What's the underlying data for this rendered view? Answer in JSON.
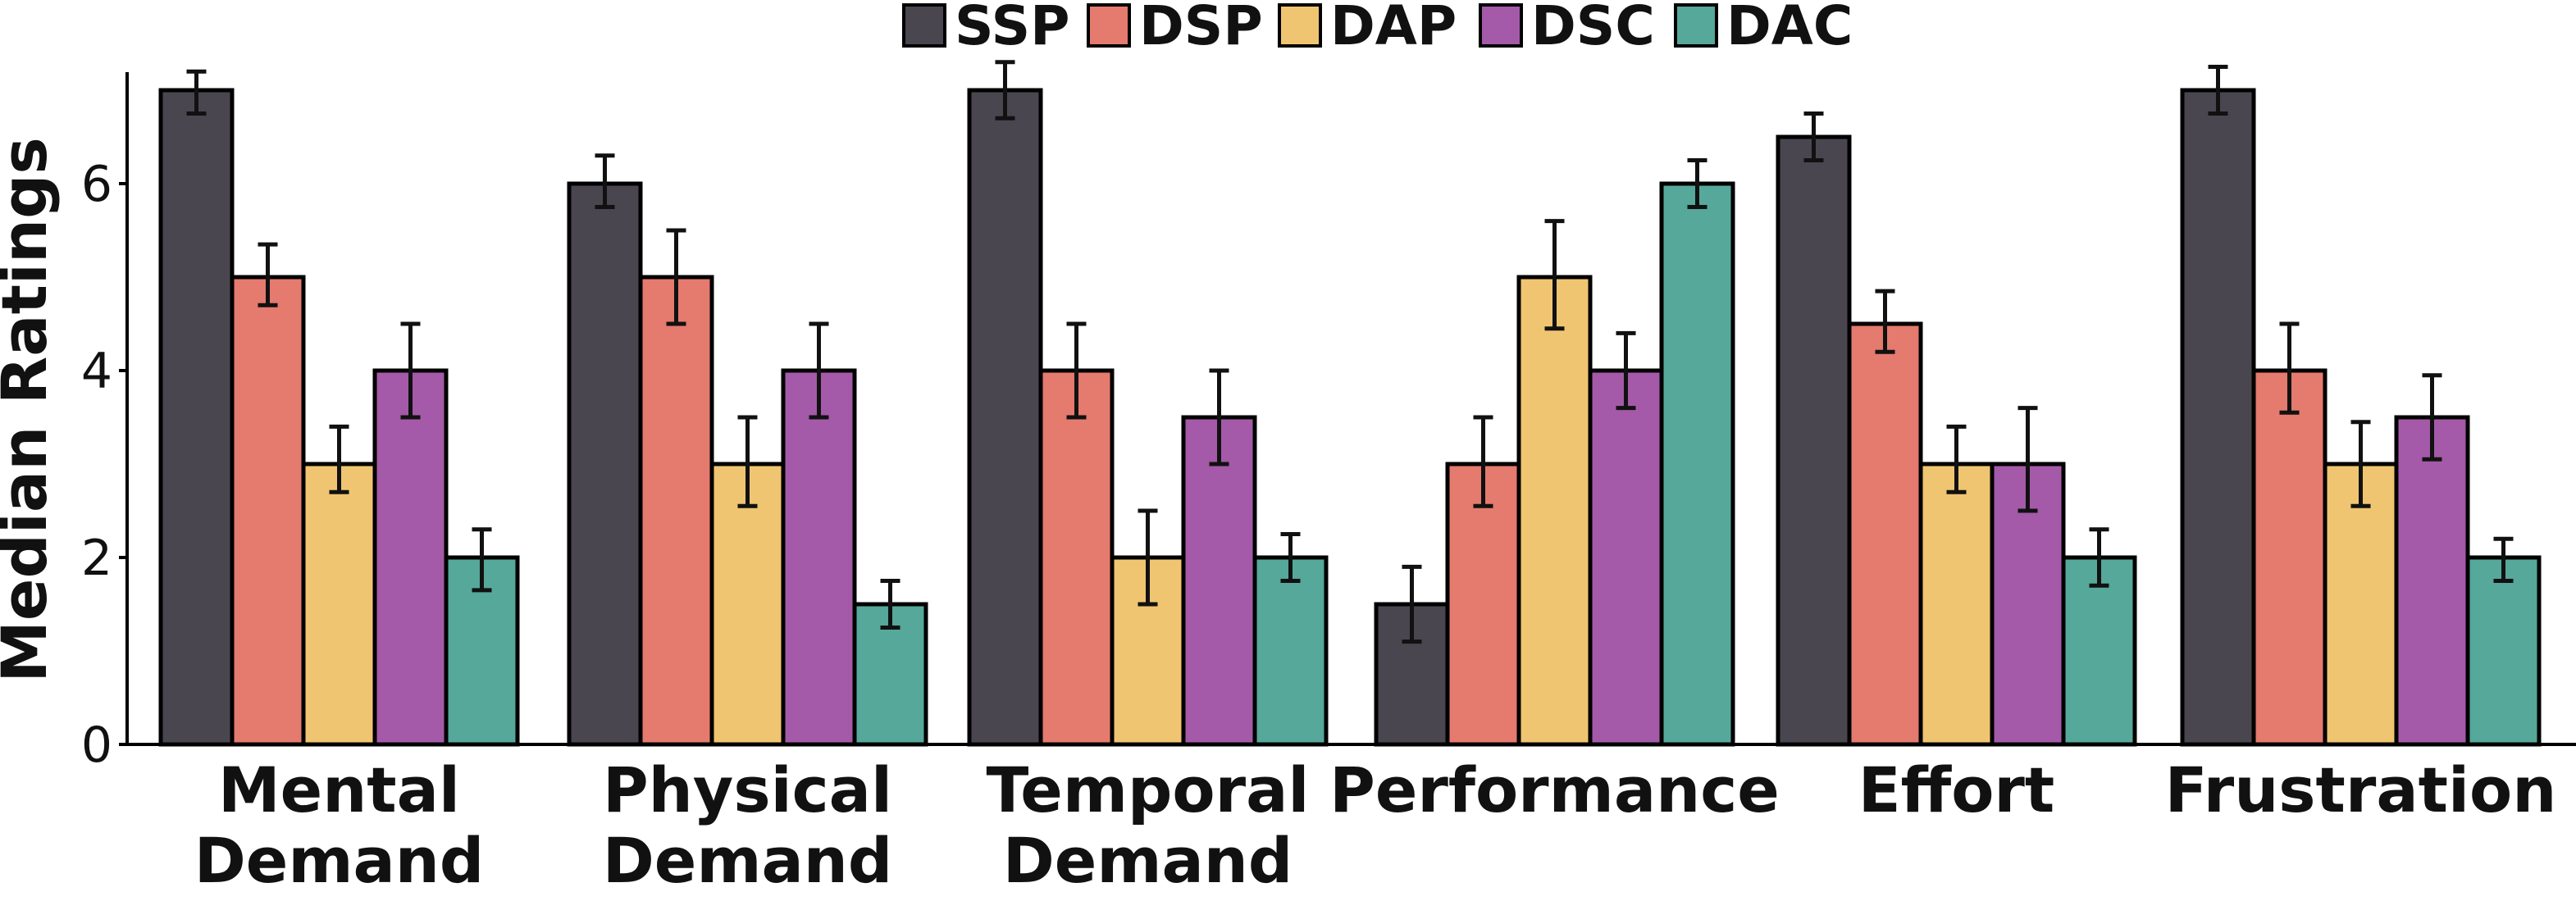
{
  "chart_data": {
    "type": "bar",
    "title": "",
    "xlabel": "",
    "ylabel": "Median Ratings",
    "ylim": [
      0,
      7.2
    ],
    "yticks": [
      0,
      2,
      4,
      6
    ],
    "legend_position": "top-center",
    "categories": [
      [
        "Mental",
        "Demand"
      ],
      [
        "Physical",
        "Demand"
      ],
      [
        "Temporal",
        "Demand"
      ],
      [
        "Performance"
      ],
      [
        "Effort"
      ],
      [
        "Frustration"
      ]
    ],
    "series": [
      {
        "name": "SSP",
        "color": "#4a4650",
        "values": [
          7,
          6,
          7,
          1.5,
          6.5,
          7
        ],
        "err_low": [
          6.75,
          5.75,
          6.7,
          1.1,
          6.25,
          6.75
        ],
        "err_high": [
          7.2,
          6.3,
          7.3,
          1.9,
          6.75,
          7.25
        ]
      },
      {
        "name": "DSP",
        "color": "#e57a6e",
        "values": [
          5,
          5,
          4,
          3,
          4.5,
          4
        ],
        "err_low": [
          4.7,
          4.5,
          3.5,
          2.55,
          4.2,
          3.55
        ],
        "err_high": [
          5.35,
          5.5,
          4.5,
          3.5,
          4.85,
          4.5
        ]
      },
      {
        "name": "DAP",
        "color": "#f0c571",
        "values": [
          3,
          3,
          2,
          5,
          3,
          3
        ],
        "err_low": [
          2.7,
          2.55,
          1.5,
          4.45,
          2.7,
          2.55
        ],
        "err_high": [
          3.4,
          3.5,
          2.5,
          5.6,
          3.4,
          3.45
        ]
      },
      {
        "name": "DSC",
        "color": "#a45aa8",
        "values": [
          4,
          4,
          3.5,
          4,
          3,
          3.5
        ],
        "err_low": [
          3.5,
          3.5,
          3,
          3.6,
          2.5,
          3.05
        ],
        "err_high": [
          4.5,
          4.5,
          4,
          4.4,
          3.6,
          3.95
        ]
      },
      {
        "name": "DAC",
        "color": "#55a89a",
        "values": [
          2,
          1.5,
          2,
          6,
          2,
          2
        ],
        "err_low": [
          1.65,
          1.25,
          1.75,
          5.75,
          1.7,
          1.75
        ],
        "err_high": [
          2.3,
          1.75,
          2.25,
          6.25,
          2.3,
          2.2
        ]
      }
    ]
  }
}
